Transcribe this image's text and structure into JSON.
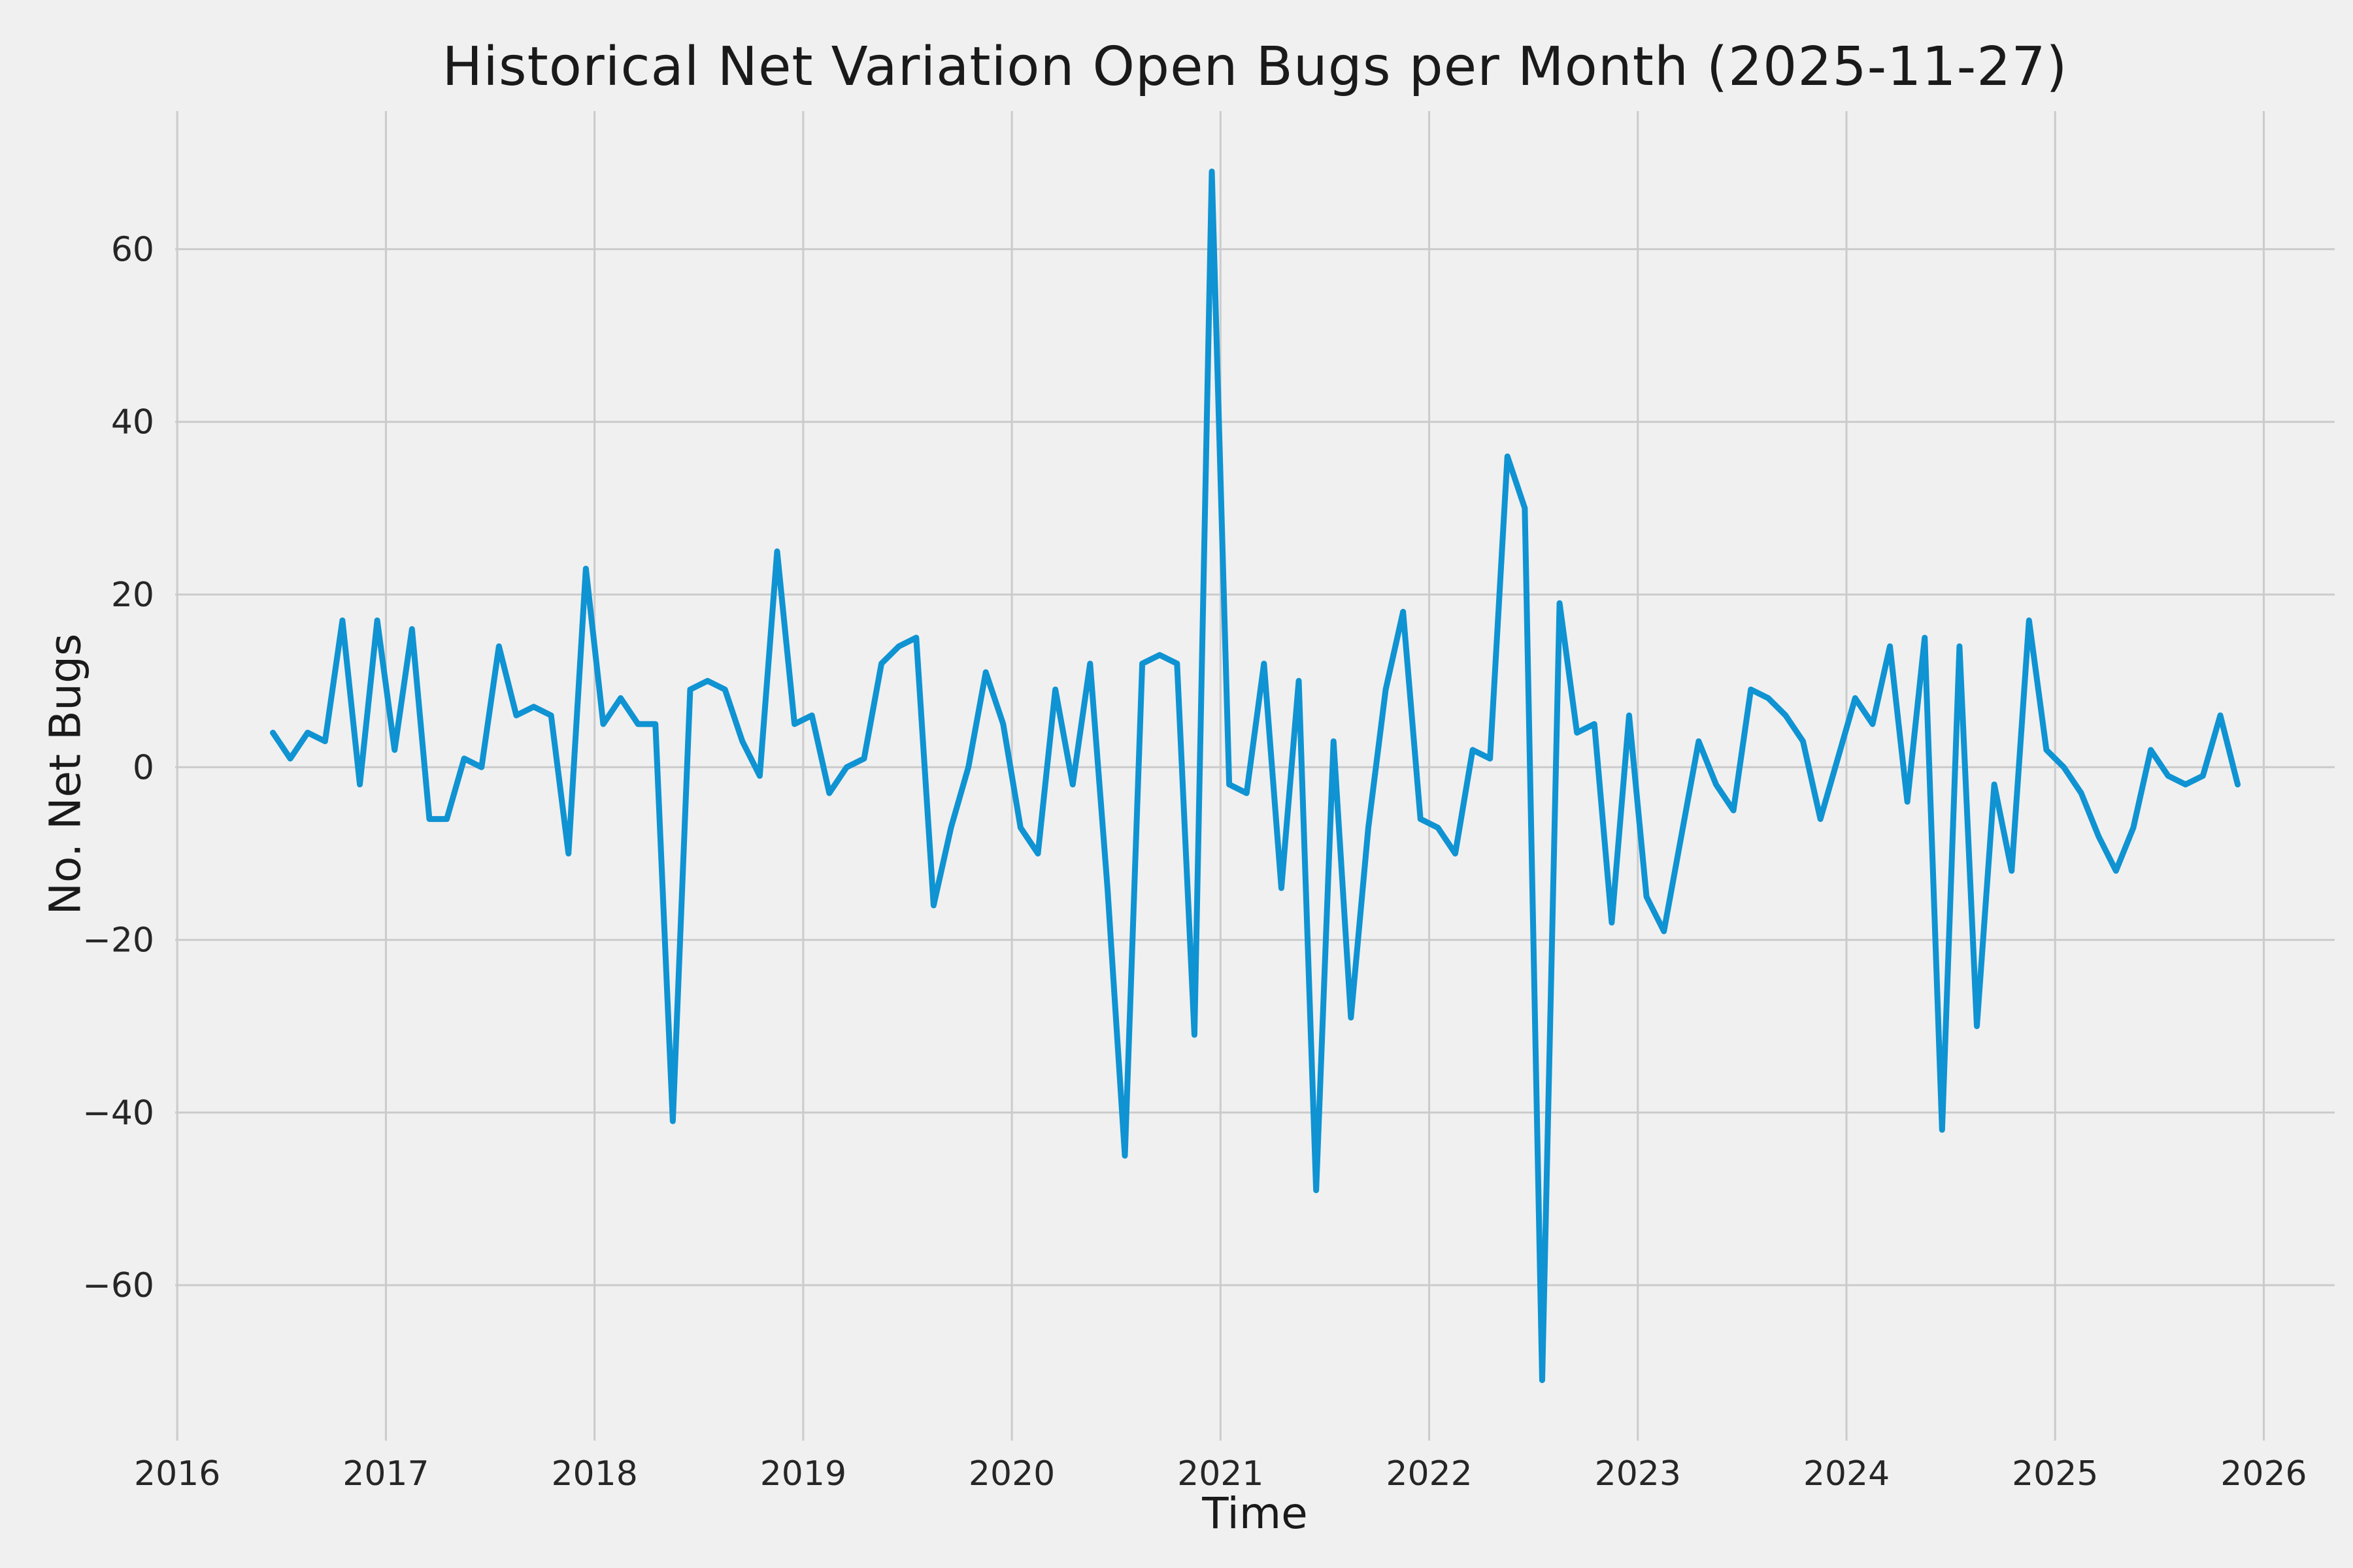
{
  "chart_data": {
    "type": "line",
    "title": "Historical Net Variation Open Bugs per Month (2025-11-27)",
    "xlabel": "Time",
    "ylabel": "No. Net Bugs",
    "series_name": "Net variation of open bugs per month",
    "frequency": "monthly",
    "start_month": "2016-06",
    "end_month": "2025-11",
    "values": [
      4,
      1,
      4,
      3,
      17,
      -2,
      17,
      2,
      16,
      -6,
      -6,
      1,
      0,
      14,
      6,
      7,
      6,
      -10,
      23,
      5,
      8,
      5,
      5,
      -41,
      9,
      10,
      9,
      3,
      -1,
      25,
      5,
      6,
      -3,
      0,
      1,
      12,
      14,
      15,
      -16,
      -7,
      0,
      11,
      5,
      -7,
      -10,
      9,
      -2,
      12,
      -14,
      -45,
      12,
      13,
      12,
      -31,
      69,
      -2,
      -3,
      12,
      -14,
      10,
      -49,
      3,
      -29,
      -7,
      9,
      18,
      -6,
      -7,
      -10,
      2,
      1,
      36,
      30,
      -71,
      19,
      4,
      5,
      -18,
      6,
      -15,
      -19,
      -8,
      3,
      -2,
      -5,
      9,
      8,
      6,
      3,
      -6,
      1,
      8,
      5,
      14,
      -4,
      15,
      -42,
      14,
      -30,
      -2,
      -12,
      17,
      2,
      0,
      -3,
      -8,
      -12,
      -7,
      2,
      -1,
      -2,
      -1,
      6,
      -2
    ],
    "xticks": [
      2016,
      2017,
      2018,
      2019,
      2020,
      2021,
      2022,
      2023,
      2024,
      2025,
      2026
    ],
    "yticks": [
      -60,
      -40,
      -20,
      0,
      20,
      40,
      60
    ],
    "xlim": [
      2015.99,
      2026.34
    ],
    "ylim": [
      -78,
      76
    ],
    "grid": true,
    "legend": "none",
    "line_color": "#0f93d2",
    "background_color": "#f0f0f0",
    "grid_color": "#cbcbcb",
    "text_color": "#262626"
  }
}
